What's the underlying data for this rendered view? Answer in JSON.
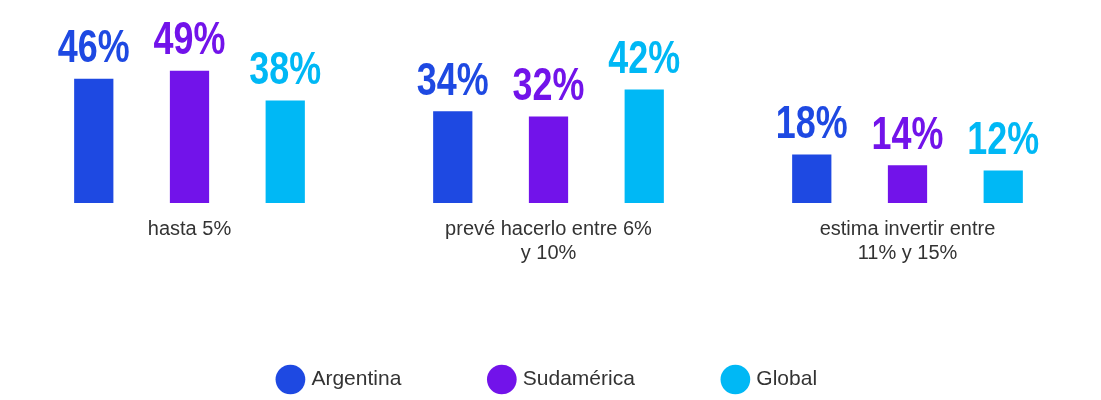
{
  "chart_data": {
    "type": "bar",
    "categories": [
      "hasta 5%",
      "prevé hacerlo entre 6% y 10%",
      "estima invertir entre 11% y 15%"
    ],
    "series": [
      {
        "name": "Argentina",
        "color": "#1e49e2",
        "values": [
          46,
          34,
          18
        ],
        "value_labels": [
          "46%",
          "34%",
          "18%"
        ]
      },
      {
        "name": "Sudamérica",
        "color": "#7213ea",
        "values": [
          49,
          32,
          14
        ],
        "value_labels": [
          "49%",
          "32%",
          "14%"
        ]
      },
      {
        "name": "Global",
        "color": "#00b8f5",
        "values": [
          38,
          42,
          12
        ],
        "value_labels": [
          "38%",
          "42%",
          "12%"
        ]
      }
    ],
    "legend": "bottom",
    "grid": false
  }
}
